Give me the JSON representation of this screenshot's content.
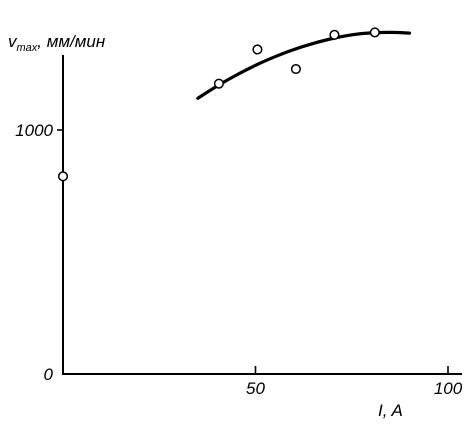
{
  "chart_data": {
    "type": "scatter",
    "ylabel": {
      "symbol": "v",
      "subscript": "max",
      "unit": ", мм/мин"
    },
    "xlabel": "I, A",
    "xlim": [
      0,
      100
    ],
    "ylim": [
      0,
      1550
    ],
    "x_ticks": [
      {
        "value": 50,
        "label": "50"
      },
      {
        "value": 100,
        "label": "100"
      }
    ],
    "y_ticks": [
      {
        "value": 0,
        "label": "0"
      },
      {
        "value": 1000,
        "label": "1000"
      }
    ],
    "points": [
      {
        "x": 0,
        "y": 810
      },
      {
        "x": 40.5,
        "y": 1190
      },
      {
        "x": 50.5,
        "y": 1330
      },
      {
        "x": 60.5,
        "y": 1250
      },
      {
        "x": 70.5,
        "y": 1390
      },
      {
        "x": 81,
        "y": 1400
      }
    ],
    "curve": {
      "x": [
        35,
        40,
        45,
        50,
        55,
        60,
        65,
        70,
        75,
        80,
        85,
        90
      ],
      "y": [
        1130,
        1180,
        1225,
        1265,
        1300,
        1330,
        1355,
        1375,
        1390,
        1398,
        1400,
        1397
      ]
    },
    "grid": false,
    "colors": {
      "ink": "#000000",
      "background": "#ffffff",
      "marker_fill": "#ffffff"
    }
  }
}
